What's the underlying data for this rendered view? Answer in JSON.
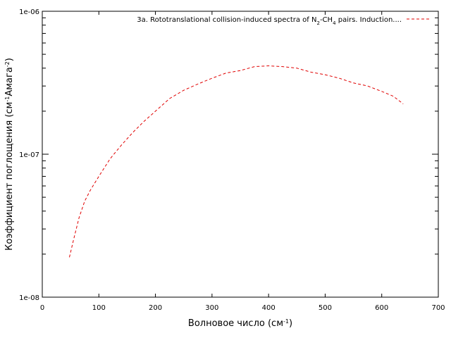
{
  "chart_data": {
    "type": "line",
    "title": "",
    "xlabel": "Волновое число (см",
    "xlabel_sup": "-1",
    "xlabel_end": ")",
    "ylabel": "Коэффициент поглощения (см",
    "ylabel_sup1": "-1",
    "ylabel_mid": "Амага",
    "ylabel_sup2": "-2",
    "ylabel_end": ")",
    "xlim": [
      0,
      700
    ],
    "ylim": [
      1e-08,
      1e-06
    ],
    "yscale": "log",
    "grid": false,
    "legend_position": "top-right",
    "x_ticks": [
      {
        "value": 0,
        "label": "0"
      },
      {
        "value": 100,
        "label": "100"
      },
      {
        "value": 200,
        "label": "200"
      },
      {
        "value": 300,
        "label": "300"
      },
      {
        "value": 400,
        "label": "400"
      },
      {
        "value": 500,
        "label": "500"
      },
      {
        "value": 600,
        "label": "600"
      },
      {
        "value": 700,
        "label": "700"
      }
    ],
    "y_ticks": [
      {
        "value": 1e-08,
        "label": "1e-08"
      },
      {
        "value": 1e-07,
        "label": "1e-07"
      },
      {
        "value": 1e-06,
        "label": "1e-06"
      }
    ],
    "series": [
      {
        "name": "3a. Rototranslational collision-induced spectra of N2-CH4 pairs. Induction....",
        "legend_parts": {
          "a": "3a. Rototranslational collision-induced spectra of N",
          "s1": "2",
          "b": "-CH",
          "s2": "4",
          "c": " pairs. Induction...."
        },
        "color": "#e00000",
        "dash": "dashed",
        "x": [
          48,
          55,
          65,
          75,
          85,
          100,
          120,
          140,
          160,
          180,
          200,
          225,
          250,
          275,
          300,
          325,
          350,
          375,
          400,
          425,
          450,
          475,
          500,
          525,
          550,
          575,
          600,
          620,
          638
        ],
        "y": [
          1.9e-08,
          2.5e-08,
          3.6e-08,
          4.7e-08,
          5.6e-08,
          7e-08,
          9.3e-08,
          1.16e-07,
          1.42e-07,
          1.7e-07,
          2e-07,
          2.45e-07,
          2.8e-07,
          3.1e-07,
          3.4e-07,
          3.7e-07,
          3.85e-07,
          4.1e-07,
          4.15e-07,
          4.1e-07,
          4e-07,
          3.75e-07,
          3.6e-07,
          3.4e-07,
          3.15e-07,
          3e-07,
          2.75e-07,
          2.55e-07,
          2.25e-07
        ]
      }
    ]
  }
}
